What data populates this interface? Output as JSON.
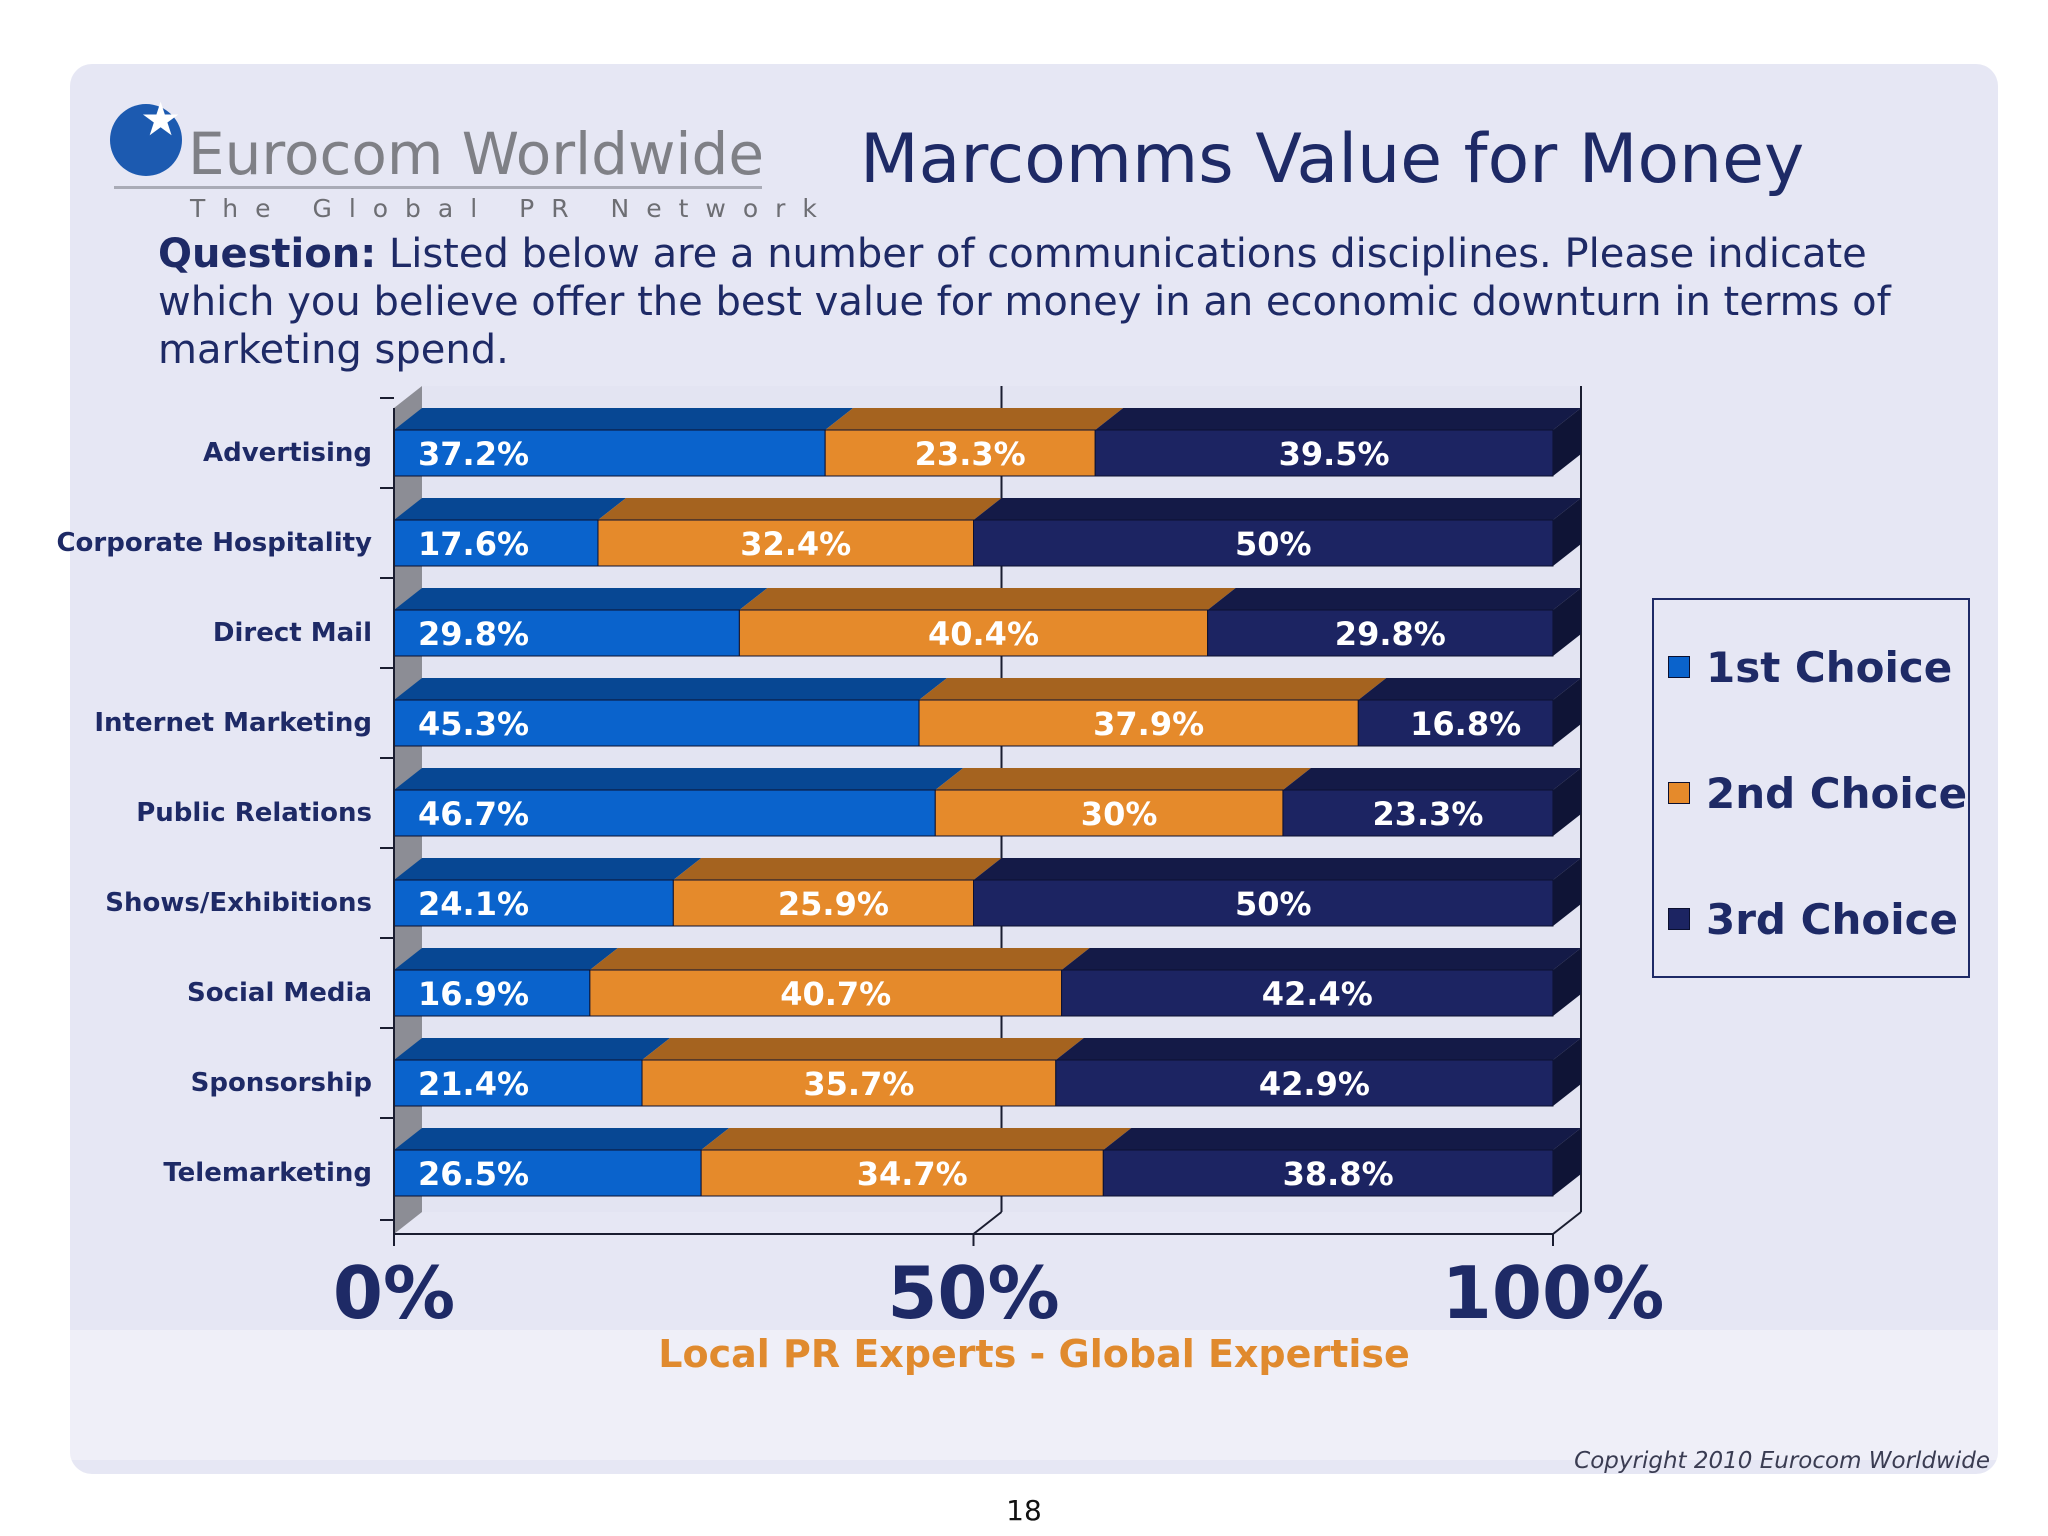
{
  "brand": {
    "name": "Eurocom Worldwide",
    "tagline": "The Global PR Network",
    "slogan": "Local PR Experts - Global Expertise",
    "copyright": "Copyright 2010 Eurocom Worldwide"
  },
  "slide": {
    "title": "Marcomms Value for Money",
    "question_label": "Question:",
    "question_text": " Listed below are a number of communications disciplines. Please indicate which you believe offer the best value for money in an economic downturn in terms of marketing spend.",
    "page_number": "18"
  },
  "colors": {
    "series": [
      "#0a63cc",
      "#e58a2b",
      "#1c2462"
    ]
  },
  "chart_data": {
    "type": "bar",
    "orientation": "horizontal",
    "stacked": true,
    "percent_stacked": true,
    "categories": [
      "Advertising",
      "Corporate Hospitality",
      "Direct Mail",
      "Internet Marketing",
      "Public Relations",
      "Shows/Exhibitions",
      "Social Media",
      "Sponsorship",
      "Telemarketing"
    ],
    "series": [
      {
        "name": "1st Choice",
        "values": [
          37.2,
          17.6,
          29.8,
          45.3,
          46.7,
          24.1,
          16.9,
          21.4,
          26.5
        ],
        "labels": [
          "37.2%",
          "17.6%",
          "29.8%",
          "45.3%",
          "46.7%",
          "24.1%",
          "16.9%",
          "21.4%",
          "26.5%"
        ]
      },
      {
        "name": "2nd Choice",
        "values": [
          23.3,
          32.4,
          40.4,
          37.9,
          30,
          25.9,
          40.7,
          35.7,
          34.7
        ],
        "labels": [
          "23.3%",
          "32.4%",
          "40.4%",
          "37.9%",
          "30%",
          "25.9%",
          "40.7%",
          "35.7%",
          "34.7%"
        ]
      },
      {
        "name": "3rd Choice",
        "values": [
          39.5,
          50,
          29.8,
          16.8,
          23.3,
          50,
          42.4,
          42.9,
          38.8
        ],
        "labels": [
          "39.5%",
          "50%",
          "29.8%",
          "16.8%",
          "23.3%",
          "50%",
          "42.4%",
          "42.9%",
          "38.8%"
        ]
      }
    ],
    "x_ticks": [
      "0%",
      "50%",
      "100%"
    ],
    "xlim": [
      0,
      100
    ],
    "legend_position": "right",
    "three_d": true
  }
}
